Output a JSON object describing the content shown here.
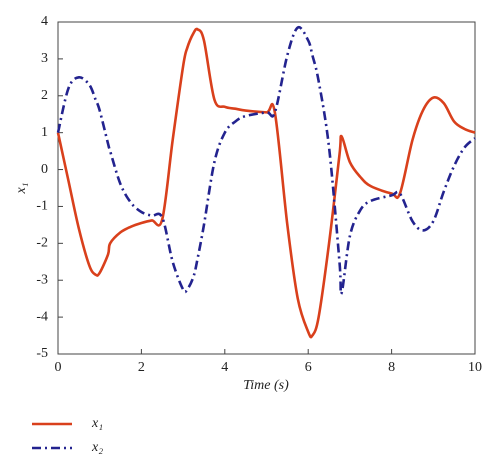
{
  "chart_data": {
    "type": "line",
    "x_label": "Time (s)",
    "y_label": "x₁",
    "x": [
      0,
      0.25,
      0.5,
      0.75,
      0.9,
      1.0,
      1.2,
      1.25,
      1.5,
      1.75,
      2.0,
      2.25,
      2.5,
      2.75,
      3.0,
      3.1,
      3.25,
      3.35,
      3.5,
      3.75,
      4.0,
      4.25,
      4.5,
      5.0,
      5.2,
      5.5,
      5.75,
      6.0,
      6.1,
      6.25,
      6.5,
      6.75,
      6.8,
      7.0,
      7.25,
      7.5,
      8.0,
      8.2,
      8.5,
      8.75,
      9.0,
      9.25,
      9.5,
      9.75,
      10
    ],
    "series": [
      {
        "name": "x₁",
        "color": "#d9401c",
        "dash": "solid",
        "values": [
          1,
          -0.3,
          -1.6,
          -2.6,
          -2.85,
          -2.8,
          -2.3,
          -2.0,
          -1.7,
          -1.55,
          -1.45,
          -1.38,
          -1.35,
          0.8,
          2.8,
          3.3,
          3.7,
          3.8,
          3.5,
          1.9,
          1.7,
          1.65,
          1.6,
          1.55,
          1.55,
          -1.5,
          -3.5,
          -4.4,
          -4.5,
          -4.0,
          -2.0,
          0.4,
          0.9,
          0.2,
          -0.2,
          -0.45,
          -0.65,
          -0.65,
          0.8,
          1.6,
          1.95,
          1.8,
          1.3,
          1.1,
          1.0
        ]
      },
      {
        "name": "x₂",
        "color": "#23238f",
        "dash": "dashdot",
        "values": [
          1,
          2.2,
          2.5,
          2.3,
          1.9,
          1.6,
          0.7,
          0.5,
          -0.4,
          -0.9,
          -1.15,
          -1.25,
          -1.3,
          -2.5,
          -3.25,
          -3.25,
          -2.9,
          -2.4,
          -1.5,
          0.2,
          1.0,
          1.3,
          1.45,
          1.55,
          1.55,
          3.1,
          3.85,
          3.5,
          3.1,
          2.4,
          0.6,
          -2.5,
          -3.35,
          -1.8,
          -1.1,
          -0.85,
          -0.7,
          -0.65,
          -1.4,
          -1.65,
          -1.4,
          -0.6,
          0.1,
          0.6,
          0.85
        ]
      }
    ],
    "xlim": [
      0,
      10
    ],
    "xticks": [
      0,
      2,
      4,
      6,
      8,
      10
    ],
    "ylim": [
      -5,
      4
    ],
    "yticks": [
      -5,
      -4,
      -3,
      -2,
      -1,
      0,
      1,
      2,
      3,
      4
    ],
    "grid": false,
    "legend": "bottom-left"
  }
}
